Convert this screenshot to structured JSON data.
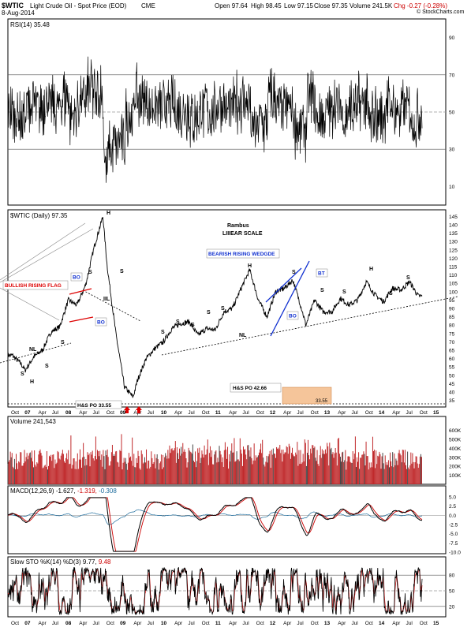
{
  "header": {
    "symbol": "$WTIC",
    "name": "Light Crude Oil - Spot Price (EOD)",
    "exchange": "CME",
    "date": "8-Aug-2014",
    "open": "Open 97.64",
    "high": "High 98.45",
    "low": "Low 97.15",
    "close": "Close 97.35",
    "volume": "Volume 241.5K",
    "chg": "Chg -0.27 (-0.28%)",
    "chg_color": "#cc0000",
    "watermark": "© StockCharts.com"
  },
  "colors": {
    "price": "#000000",
    "volume_bar": "#c0292b",
    "macd_line": "#000000",
    "macd_signal": "#cc0000",
    "macd_hist": "#1c6b9c",
    "sto_k": "#000000",
    "sto_d": "#cc0000",
    "flag": "#dd0000",
    "wedge": "#1030d0",
    "po_box": "#f5c59a"
  },
  "chart_data": [
    {
      "type": "line",
      "panel": "rsi",
      "title": "RSI(14) 35.48",
      "y_ticks": [
        "90",
        "70",
        "50",
        "30",
        "10"
      ],
      "ylim": [
        0,
        100
      ],
      "reference_lines": [
        70,
        50,
        30
      ],
      "grid": false
    },
    {
      "type": "line",
      "panel": "price",
      "title": "$WTIC (Daily) 97.35",
      "subtitle": "Rambus",
      "subtitle2": "LIIIEAR SCALE",
      "ylim": [
        30,
        150
      ],
      "y_ticks": [
        "145",
        "140",
        "135",
        "130",
        "125",
        "120",
        "115",
        "110",
        "105",
        "100",
        "95",
        "90",
        "85",
        "80",
        "75",
        "70",
        "65",
        "60",
        "55",
        "50",
        "45",
        "40",
        "35"
      ],
      "x_ticks": [
        "Oct",
        "07",
        "Apr",
        "Jul",
        "08",
        "Apr",
        "Jul",
        "Oct",
        "09",
        "Apr",
        "Jul",
        "10",
        "Apr",
        "Jul",
        "Oct",
        "11",
        "Apr",
        "Jul",
        "Oct",
        "12",
        "Apr",
        "Jul",
        "Oct",
        "13",
        "Apr",
        "Jul",
        "Oct",
        "14",
        "Apr",
        "Jul",
        "Oct",
        "15"
      ],
      "series": [
        {
          "x": [
            "2006-10",
            "2006-12",
            "2007-01",
            "2007-03",
            "2007-05",
            "2007-07",
            "2007-09",
            "2007-11",
            "2008-01",
            "2008-03",
            "2008-05",
            "2008-07",
            "2008-08",
            "2008-10",
            "2008-12",
            "2009-02",
            "2009-03",
            "2009-05",
            "2009-07",
            "2009-09",
            "2009-11",
            "2010-01",
            "2010-03",
            "2010-05",
            "2010-07",
            "2010-09",
            "2010-11",
            "2011-01",
            "2011-03",
            "2011-05",
            "2011-07",
            "2011-09",
            "2011-11",
            "2012-01",
            "2012-03",
            "2012-05",
            "2012-06",
            "2012-08",
            "2012-10",
            "2012-12",
            "2013-02",
            "2013-04",
            "2013-06",
            "2013-08",
            "2013-10",
            "2013-12",
            "2014-02",
            "2014-04",
            "2014-06",
            "2014-08"
          ],
          "values": [
            62,
            57,
            53,
            61,
            65,
            76,
            79,
            95,
            92,
            104,
            127,
            145,
            115,
            75,
            43,
            37,
            47,
            60,
            66,
            70,
            78,
            81,
            82,
            74,
            78,
            77,
            88,
            90,
            102,
            113,
            95,
            85,
            100,
            102,
            107,
            90,
            80,
            95,
            88,
            88,
            96,
            92,
            95,
            106,
            98,
            94,
            102,
            101,
            106,
            97.35
          ]
        }
      ],
      "annotations": [
        "BULLISH RISING FLAG",
        "BO",
        "BO",
        "S",
        "S",
        "H",
        "S",
        "S",
        "NL",
        "H",
        "S",
        "S",
        "S",
        "S",
        "S",
        "S",
        "S",
        "S",
        "S",
        "NL",
        "H",
        "BEARISH RISING WEDGDE",
        "S",
        "BT",
        "BO",
        "S",
        "S",
        "S",
        "H",
        "S",
        "S",
        "H&S PO 33.55",
        "H&S PO 42.66",
        "33.55",
        "IIL"
      ]
    },
    {
      "type": "bar",
      "panel": "volume",
      "title": "Volume 241,543",
      "y_ticks": [
        "600K",
        "500K",
        "400K",
        "300K",
        "200K",
        "100K"
      ],
      "ylim": [
        0,
        650000
      ]
    },
    {
      "type": "line",
      "panel": "macd",
      "title": "MACD(12,26,9) -1.627, -1.319, -0.308",
      "series": [
        {
          "name": "MACD(12,26,9)",
          "last": -1.627
        },
        {
          "name": "Signal",
          "last": -1.319
        },
        {
          "name": "Histogram",
          "last": -0.308
        }
      ],
      "y_ticks": [
        "5.0",
        "2.5",
        "0.0",
        "-2.5",
        "-5.0",
        "-7.5",
        "-10.0"
      ],
      "ylim": [
        -10,
        5
      ]
    },
    {
      "type": "line",
      "panel": "sto",
      "title": "Slow STO %K(14) %D(3) 9.77, 9.48",
      "series": [
        {
          "name": "%K(14)",
          "last": 9.77
        },
        {
          "name": "%D(3)",
          "last": 9.48
        }
      ],
      "y_ticks": [
        "80",
        "50",
        "20"
      ],
      "reference_lines": [
        80,
        20
      ],
      "ylim": [
        0,
        100
      ]
    }
  ],
  "labels": {
    "rsi_title": "RSI(14) 35.48",
    "price_title": "$WTIC (Daily) 97.35",
    "rambus": "Rambus",
    "scale": "LIIIEAR SCALE",
    "vol_title": "Volume 241,543",
    "macd_title_a": "MACD(12,26,9)",
    "macd_v1": "-1.627,",
    "macd_v2": "-1.319,",
    "macd_v3": "-0.308",
    "sto_title_a": "Slow STO %K(14) %D(3)",
    "sto_v1": "9.77,",
    "sto_v2": "9.48",
    "flag": "BULLISH RISING FLAG",
    "wedge": "BEARISH RISING WEDGDE",
    "po1": "H&S PO 33.55",
    "po2": "H&S PO 42.66",
    "po2_val": "33.55",
    "nl": "NL",
    "bo": "BO",
    "bt": "BT",
    "iil": "IIL"
  }
}
